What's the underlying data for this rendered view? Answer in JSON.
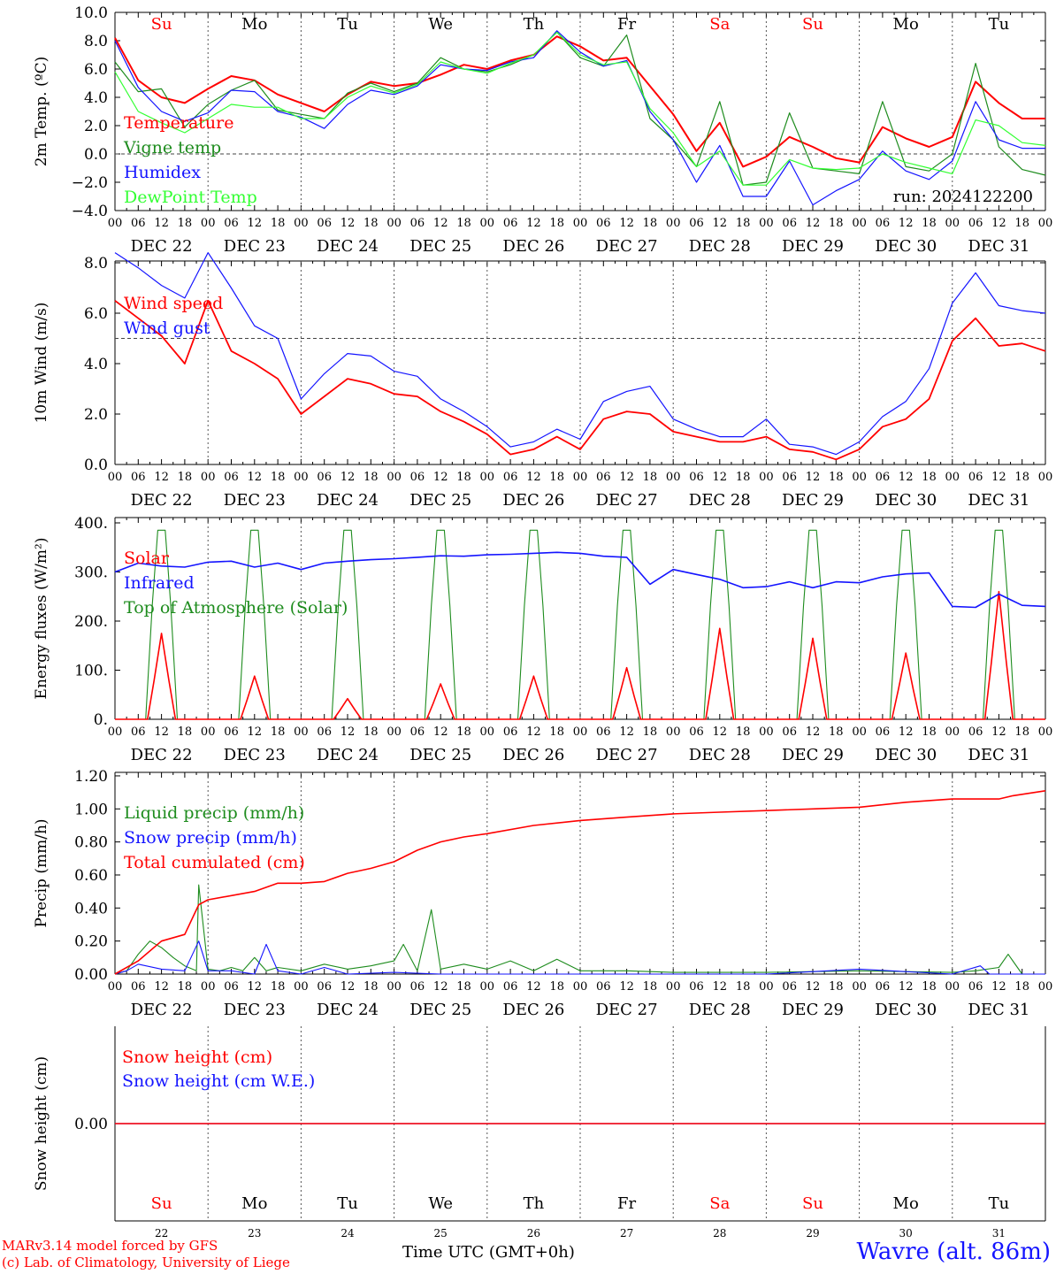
{
  "colors": {
    "red": "#ff0000",
    "darkgreen": "#1e8c1e",
    "blue": "#1414ff",
    "lightgreen": "#33ff33",
    "black": "#000000"
  },
  "x_axis": {
    "hour_labels": [
      "00",
      "06",
      "12",
      "18"
    ],
    "end_hour_label": "00",
    "dates": [
      "DEC 22",
      "DEC 23",
      "DEC 24",
      "DEC 25",
      "DEC 26",
      "DEC 27",
      "DEC 28",
      "DEC 29",
      "DEC 30",
      "DEC 31"
    ],
    "weekdays": [
      "Su",
      "Mo",
      "Tu",
      "We",
      "Th",
      "Fr",
      "Sa",
      "Su",
      "Mo",
      "Tu"
    ],
    "weekday_colors": [
      "#ff0000",
      "#000000",
      "#000000",
      "#000000",
      "#000000",
      "#000000",
      "#ff0000",
      "#ff0000",
      "#000000",
      "#000000"
    ],
    "day_numbers": [
      "22",
      "23",
      "24",
      "25",
      "26",
      "27",
      "28",
      "29",
      "30",
      "31"
    ],
    "title": "Time UTC (GMT+0h)"
  },
  "run_label": "run: 2024122200",
  "footer": {
    "model_line": "MARv3.14 model forced by GFS",
    "lab_line": "(c) Lab. of Climatology, University of Liege",
    "station": "Wavre (alt. 86m)"
  },
  "chart_data": [
    {
      "type": "line",
      "title": "",
      "ylabel": "2m Temp. (ºC)",
      "ylim": [
        -4,
        10
      ],
      "yticks": [
        "10.0",
        "8.0",
        "6.0",
        "4.0",
        "2.0",
        "0.0",
        "−2.0",
        "−4.0"
      ],
      "reference_line": 0,
      "x_days": [
        0,
        0.25,
        0.5,
        0.75,
        1,
        1.25,
        1.5,
        1.75,
        2,
        2.25,
        2.5,
        2.75,
        3,
        3.25,
        3.5,
        3.75,
        4,
        4.25,
        4.5,
        4.75,
        5,
        5.25,
        5.5,
        5.75,
        6,
        6.25,
        6.5,
        6.75,
        7,
        7.25,
        7.5,
        7.75,
        8,
        8.25,
        8.5,
        8.75,
        9,
        9.25,
        9.5,
        9.75,
        10
      ],
      "series": [
        {
          "name": "Temperature",
          "color": "#ff0000",
          "values": [
            8.2,
            5.2,
            4.0,
            3.6,
            4.6,
            5.5,
            5.2,
            4.2,
            3.6,
            3.0,
            4.2,
            5.1,
            4.8,
            5.0,
            5.6,
            6.3,
            6.0,
            6.6,
            7.0,
            8.3,
            7.6,
            6.6,
            6.8,
            4.8,
            2.8,
            0.2,
            2.2,
            -0.9,
            -0.2,
            1.2,
            0.5,
            -0.3,
            -0.6,
            1.9,
            1.1,
            0.5,
            1.2,
            5.1,
            3.6,
            2.5,
            2.5
          ]
        },
        {
          "name": "Vigne temp",
          "color": "#1e8c1e",
          "values": [
            6.5,
            4.4,
            4.6,
            1.9,
            3.5,
            4.5,
            5.2,
            3.1,
            2.8,
            2.5,
            4.3,
            5.0,
            4.4,
            5.0,
            6.8,
            6.0,
            5.8,
            6.3,
            7.0,
            8.6,
            6.8,
            6.2,
            8.4,
            2.5,
            1.0,
            -0.9,
            3.7,
            -2.2,
            -2.0,
            2.9,
            -1.0,
            -1.2,
            -1.4,
            3.7,
            -0.9,
            -1.2,
            0.0,
            6.4,
            0.5,
            -1.1,
            -1.5
          ]
        },
        {
          "name": "Humidex",
          "color": "#1414ff",
          "values": [
            8.0,
            4.7,
            3.0,
            2.3,
            2.9,
            4.5,
            4.4,
            3.0,
            2.6,
            1.8,
            3.5,
            4.5,
            4.2,
            4.8,
            6.3,
            6.0,
            5.9,
            6.5,
            6.8,
            8.7,
            7.2,
            6.2,
            6.6,
            3.0,
            1.0,
            -2.0,
            0.6,
            -3.0,
            -3.0,
            -0.5,
            -3.6,
            -2.6,
            -1.8,
            0.2,
            -1.2,
            -1.8,
            -0.5,
            3.7,
            1.0,
            0.4,
            0.4
          ]
        },
        {
          "name": "DewPoint Temp",
          "color": "#33ff33",
          "values": [
            5.8,
            3.0,
            2.2,
            1.5,
            2.5,
            3.5,
            3.3,
            3.3,
            2.5,
            2.5,
            4.0,
            4.8,
            4.3,
            4.9,
            6.5,
            6.0,
            5.7,
            6.4,
            7.0,
            8.6,
            7.0,
            6.3,
            6.5,
            3.2,
            1.5,
            -0.9,
            0.2,
            -2.2,
            -2.2,
            -0.4,
            -1.0,
            -1.1,
            -1.0,
            0.0,
            -0.6,
            -1.0,
            -1.4,
            2.4,
            2.0,
            0.8,
            0.6
          ]
        }
      ]
    },
    {
      "type": "line",
      "title": "",
      "ylabel": "10m Wind (m/s)",
      "ylim": [
        0,
        8.8
      ],
      "yticks": [
        "8.0",
        "6.0",
        "4.0",
        "2.0",
        "0.0"
      ],
      "reference_line": 5.0,
      "x_days": [
        0,
        0.25,
        0.5,
        0.75,
        1,
        1.25,
        1.5,
        1.75,
        2,
        2.25,
        2.5,
        2.75,
        3,
        3.25,
        3.5,
        3.75,
        4,
        4.25,
        4.5,
        4.75,
        5,
        5.25,
        5.5,
        5.75,
        6,
        6.25,
        6.5,
        6.75,
        7,
        7.25,
        7.5,
        7.75,
        8,
        8.25,
        8.5,
        8.75,
        9,
        9.25,
        9.5,
        9.75,
        10
      ],
      "series": [
        {
          "name": "Wind speed",
          "color": "#ff0000",
          "values": [
            6.5,
            5.8,
            5.1,
            4.0,
            6.5,
            4.5,
            4.0,
            3.4,
            2.0,
            2.7,
            3.4,
            3.2,
            2.8,
            2.7,
            2.1,
            1.7,
            1.2,
            0.4,
            0.6,
            1.1,
            0.6,
            1.8,
            2.1,
            2.0,
            1.3,
            1.1,
            0.9,
            0.9,
            1.1,
            0.6,
            0.5,
            0.2,
            0.6,
            1.5,
            1.8,
            2.6,
            4.9,
            5.8,
            4.7,
            4.8,
            4.5
          ]
        },
        {
          "name": "Wind gust",
          "color": "#1414ff",
          "values": [
            8.4,
            7.8,
            7.1,
            6.6,
            8.4,
            7.0,
            5.5,
            5.0,
            2.6,
            3.6,
            4.4,
            4.3,
            3.7,
            3.5,
            2.6,
            2.1,
            1.5,
            0.7,
            0.9,
            1.4,
            1.0,
            2.5,
            2.9,
            3.1,
            1.8,
            1.4,
            1.1,
            1.1,
            1.8,
            0.8,
            0.7,
            0.4,
            0.9,
            1.9,
            2.5,
            3.8,
            6.4,
            7.6,
            6.3,
            6.1,
            6.0
          ]
        }
      ]
    },
    {
      "type": "line",
      "title": "",
      "ylabel": "Energy fluxes (W/m²)",
      "ylim": [
        0,
        400
      ],
      "yticks": [
        "400.",
        "300.",
        "200.",
        "100.",
        "0."
      ],
      "solar_peaks": [
        175,
        88,
        42,
        72,
        88,
        105,
        185,
        165,
        135,
        260
      ],
      "toa_peak": 385,
      "series": [
        {
          "name": "Solar",
          "color": "#ff0000"
        },
        {
          "name": "Infrared",
          "color": "#1414ff",
          "x_days": [
            0,
            0.25,
            0.5,
            0.75,
            1,
            1.25,
            1.5,
            1.75,
            2,
            2.25,
            2.5,
            2.75,
            3,
            3.25,
            3.5,
            3.75,
            4,
            4.25,
            4.5,
            4.75,
            5,
            5.25,
            5.5,
            5.75,
            6,
            6.25,
            6.5,
            6.75,
            7,
            7.25,
            7.5,
            7.75,
            8,
            8.25,
            8.5,
            8.75,
            9,
            9.25,
            9.5,
            9.75,
            10
          ],
          "values": [
            300,
            318,
            312,
            310,
            320,
            322,
            310,
            318,
            305,
            318,
            322,
            325,
            327,
            330,
            333,
            332,
            335,
            336,
            338,
            340,
            338,
            332,
            330,
            275,
            305,
            295,
            285,
            268,
            270,
            280,
            268,
            280,
            278,
            290,
            296,
            298,
            230,
            228,
            255,
            232,
            230
          ]
        },
        {
          "name": "Top of Atmosphere (Solar)",
          "color": "#1e8c1e"
        }
      ]
    },
    {
      "type": "line",
      "title": "",
      "ylabel": "Precip (mm/h)",
      "ylim": [
        0,
        1.2
      ],
      "yticks": [
        "1.20",
        "1.00",
        "0.80",
        "0.60",
        "0.40",
        "0.20",
        "0.00"
      ],
      "series": [
        {
          "name": "Liquid precip (mm/h)",
          "color": "#1e8c1e",
          "x_days": [
            0,
            0.125,
            0.25,
            0.375,
            0.5,
            0.625,
            0.75,
            0.875,
            0.9,
            1.0,
            1.125,
            1.25,
            1.375,
            1.5,
            1.625,
            1.75,
            2.0,
            2.25,
            2.5,
            2.75,
            3.0,
            3.1,
            3.25,
            3.4,
            3.5,
            3.75,
            4.0,
            4.25,
            4.5,
            4.75,
            5.0,
            5.5,
            6.0,
            7.0,
            8.0,
            9.0,
            9.25,
            9.5,
            9.6,
            9.75,
            10
          ],
          "values": [
            0,
            0.02,
            0.12,
            0.2,
            0.16,
            0.1,
            0.05,
            0.02,
            0.54,
            0.03,
            0.02,
            0.04,
            0.02,
            0.1,
            0.02,
            0.04,
            0.02,
            0.06,
            0.03,
            0.05,
            0.08,
            0.18,
            0.02,
            0.39,
            0.03,
            0.06,
            0.03,
            0.08,
            0.02,
            0.09,
            0.02,
            0.02,
            0.01,
            0.01,
            0.02,
            0.01,
            0.02,
            0.04,
            0.12,
            0.0,
            0
          ]
        },
        {
          "name": "Snow precip (mm/h)",
          "color": "#1414ff",
          "x_days": [
            0,
            0.125,
            0.25,
            0.5,
            0.75,
            0.9,
            1.0,
            1.25,
            1.5,
            1.625,
            1.75,
            2.0,
            2.25,
            2.5,
            3.0,
            3.5,
            4.0,
            5.0,
            6.0,
            7.0,
            8.0,
            9.0,
            9.3,
            9.4,
            10
          ],
          "values": [
            0,
            0.02,
            0.06,
            0.03,
            0.02,
            0.2,
            0.02,
            0.02,
            0.0,
            0.18,
            0.02,
            0.0,
            0.04,
            0.0,
            0.01,
            0.0,
            0.0,
            0.0,
            0.0,
            0.0,
            0.03,
            0.0,
            0.05,
            0.0,
            0
          ]
        },
        {
          "name": "Total cumulated (cm)",
          "color": "#ff0000",
          "x_days": [
            0,
            0.25,
            0.5,
            0.75,
            0.9,
            1.0,
            1.5,
            1.75,
            2.0,
            2.25,
            2.5,
            2.75,
            3.0,
            3.25,
            3.5,
            3.75,
            4.0,
            4.5,
            5.0,
            5.5,
            6.0,
            6.5,
            7.0,
            7.5,
            8.0,
            8.5,
            9.0,
            9.25,
            9.5,
            9.65,
            10
          ],
          "values": [
            0,
            0.08,
            0.2,
            0.24,
            0.42,
            0.45,
            0.5,
            0.55,
            0.55,
            0.56,
            0.61,
            0.64,
            0.68,
            0.75,
            0.8,
            0.83,
            0.85,
            0.9,
            0.93,
            0.95,
            0.97,
            0.98,
            0.99,
            1.0,
            1.01,
            1.04,
            1.06,
            1.06,
            1.06,
            1.08,
            1.11
          ]
        }
      ]
    },
    {
      "type": "line",
      "title": "",
      "ylabel": "Snow height (cm)",
      "yticks": [
        "0.00"
      ],
      "series": [
        {
          "name": "Snow height (cm)",
          "color": "#ff0000",
          "x_days": [
            0,
            10
          ],
          "values": [
            0,
            0
          ]
        },
        {
          "name": "Snow height (cm W.E.)",
          "color": "#1414ff",
          "x_days": [
            0,
            10
          ],
          "values": [
            0,
            0
          ]
        }
      ]
    }
  ]
}
